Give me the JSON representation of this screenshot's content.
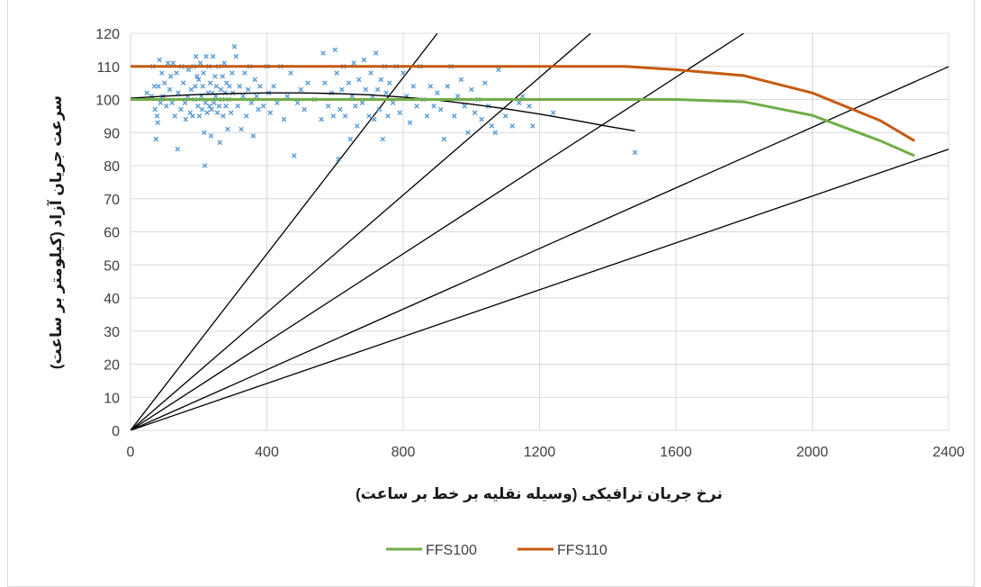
{
  "chart_data": {
    "type": "line",
    "xlabel": "نرخ جریان ترافیکی (وسیله نقلیه بر خط بر ساعت)",
    "ylabel": "سرعت جریان آزاد (کیلومتر بر ساعت)",
    "xlim": [
      0,
      2400
    ],
    "ylim": [
      0,
      120
    ],
    "x_ticks": [
      "0",
      "400",
      "800",
      "1200",
      "1600",
      "2000",
      "2400"
    ],
    "y_ticks": [
      "0",
      "10",
      "20",
      "30",
      "40",
      "50",
      "60",
      "70",
      "80",
      "90",
      "100",
      "110",
      "120"
    ],
    "grid": true,
    "legend_position": "bottom",
    "series": [
      {
        "name": "FFS100",
        "color": "#70ad47",
        "x": [
          0,
          1600,
          1800,
          2000,
          2200,
          2300
        ],
        "y": [
          100,
          100,
          99.3,
          95.2,
          87.5,
          83
        ]
      },
      {
        "name": "FFS110",
        "color": "#c55a11",
        "x": [
          0,
          1450,
          1600,
          1800,
          2000,
          2200,
          2300
        ],
        "y": [
          110,
          110,
          109,
          107.2,
          102,
          93.6,
          87.5
        ]
      }
    ],
    "density_lines": {
      "color": "#000000",
      "slopes": [
        0.1333,
        0.0889,
        0.0667,
        0.0458,
        0.0354
      ]
    },
    "trend_curve": {
      "color": "#000000",
      "x": [
        0,
        100,
        200,
        300,
        400,
        500,
        600,
        700,
        800,
        900,
        1000,
        1100,
        1200,
        1300,
        1400,
        1480
      ],
      "y": [
        100.4,
        101.0,
        101.5,
        101.8,
        102.0,
        102.0,
        101.8,
        101.4,
        100.7,
        99.8,
        98.6,
        97.2,
        95.6,
        93.8,
        91.9,
        90.5
      ]
    },
    "scatter": {
      "color": "#5b9bd5",
      "points": [
        [
          48,
          102
        ],
        [
          62,
          101
        ],
        [
          66,
          110
        ],
        [
          70,
          104
        ],
        [
          72,
          97
        ],
        [
          75,
          88
        ],
        [
          78,
          95
        ],
        [
          80,
          93
        ],
        [
          82,
          104
        ],
        [
          85,
          112
        ],
        [
          88,
          99
        ],
        [
          92,
          108
        ],
        [
          95,
          101
        ],
        [
          100,
          105
        ],
        [
          105,
          98
        ],
        [
          110,
          111
        ],
        [
          115,
          103
        ],
        [
          118,
          107
        ],
        [
          122,
          99
        ],
        [
          125,
          111
        ],
        [
          130,
          95
        ],
        [
          135,
          108
        ],
        [
          138,
          85
        ],
        [
          140,
          102
        ],
        [
          148,
          97
        ],
        [
          150,
          110
        ],
        [
          155,
          105
        ],
        [
          160,
          99
        ],
        [
          162,
          94
        ],
        [
          168,
          101
        ],
        [
          170,
          109
        ],
        [
          175,
          96
        ],
        [
          178,
          103
        ],
        [
          182,
          95
        ],
        [
          185,
          110
        ],
        [
          188,
          100
        ],
        [
          190,
          104
        ],
        [
          192,
          113
        ],
        [
          195,
          107
        ],
        [
          198,
          98
        ],
        [
          200,
          106
        ],
        [
          202,
          95
        ],
        [
          205,
          111
        ],
        [
          208,
          101
        ],
        [
          210,
          97
        ],
        [
          212,
          104
        ],
        [
          214,
          108
        ],
        [
          216,
          90
        ],
        [
          218,
          80
        ],
        [
          220,
          99
        ],
        [
          222,
          113
        ],
        [
          225,
          96
        ],
        [
          228,
          102
        ],
        [
          230,
          110
        ],
        [
          232,
          98
        ],
        [
          234,
          105
        ],
        [
          236,
          89
        ],
        [
          238,
          97
        ],
        [
          240,
          102
        ],
        [
          242,
          113
        ],
        [
          245,
          99
        ],
        [
          248,
          107
        ],
        [
          250,
          101
        ],
        [
          252,
          104
        ],
        [
          255,
          96
        ],
        [
          258,
          110
        ],
        [
          260,
          98
        ],
        [
          262,
          87
        ],
        [
          265,
          103
        ],
        [
          268,
          100
        ],
        [
          270,
          107
        ],
        [
          272,
          95
        ],
        [
          275,
          111
        ],
        [
          278,
          102
        ],
        [
          280,
          98
        ],
        [
          282,
          105
        ],
        [
          285,
          91
        ],
        [
          288,
          100
        ],
        [
          290,
          104
        ],
        [
          295,
          96
        ],
        [
          298,
          108
        ],
        [
          300,
          102
        ],
        [
          305,
          116
        ],
        [
          310,
          113
        ],
        [
          315,
          98
        ],
        [
          320,
          104
        ],
        [
          325,
          91
        ],
        [
          330,
          101
        ],
        [
          335,
          108
        ],
        [
          340,
          95
        ],
        [
          345,
          103
        ],
        [
          350,
          110
        ],
        [
          355,
          99
        ],
        [
          360,
          89
        ],
        [
          365,
          106
        ],
        [
          370,
          101
        ],
        [
          375,
          97
        ],
        [
          380,
          104
        ],
        [
          390,
          98
        ],
        [
          400,
          110
        ],
        [
          405,
          102
        ],
        [
          410,
          96
        ],
        [
          420,
          104
        ],
        [
          430,
          99
        ],
        [
          440,
          110
        ],
        [
          450,
          94
        ],
        [
          460,
          101
        ],
        [
          470,
          108
        ],
        [
          480,
          83
        ],
        [
          490,
          99
        ],
        [
          500,
          103
        ],
        [
          510,
          97
        ],
        [
          520,
          105
        ],
        [
          540,
          100
        ],
        [
          560,
          94
        ],
        [
          565,
          114
        ],
        [
          570,
          105
        ],
        [
          580,
          98
        ],
        [
          590,
          102
        ],
        [
          595,
          95
        ],
        [
          600,
          115
        ],
        [
          605,
          108
        ],
        [
          610,
          82
        ],
        [
          615,
          97
        ],
        [
          620,
          103
        ],
        [
          625,
          110
        ],
        [
          630,
          95
        ],
        [
          640,
          105
        ],
        [
          645,
          88
        ],
        [
          650,
          101
        ],
        [
          655,
          111
        ],
        [
          660,
          98
        ],
        [
          665,
          92
        ],
        [
          670,
          106
        ],
        [
          680,
          99
        ],
        [
          685,
          112
        ],
        [
          690,
          103
        ],
        [
          700,
          95
        ],
        [
          705,
          108
        ],
        [
          710,
          101
        ],
        [
          715,
          94
        ],
        [
          720,
          114
        ],
        [
          725,
          103
        ],
        [
          730,
          97
        ],
        [
          735,
          106
        ],
        [
          740,
          88
        ],
        [
          745,
          110
        ],
        [
          750,
          102
        ],
        [
          755,
          95
        ],
        [
          760,
          105
        ],
        [
          770,
          99
        ],
        [
          780,
          110
        ],
        [
          790,
          96
        ],
        [
          800,
          108
        ],
        [
          810,
          101
        ],
        [
          820,
          93
        ],
        [
          830,
          104
        ],
        [
          840,
          98
        ],
        [
          850,
          110
        ],
        [
          860,
          100
        ],
        [
          870,
          95
        ],
        [
          880,
          104
        ],
        [
          890,
          98
        ],
        [
          900,
          102
        ],
        [
          910,
          97
        ],
        [
          920,
          88
        ],
        [
          930,
          104
        ],
        [
          940,
          110
        ],
        [
          950,
          95
        ],
        [
          960,
          101
        ],
        [
          970,
          106
        ],
        [
          980,
          98
        ],
        [
          990,
          90
        ],
        [
          1000,
          103
        ],
        [
          1010,
          96
        ],
        [
          1020,
          100
        ],
        [
          1030,
          94
        ],
        [
          1040,
          105
        ],
        [
          1050,
          98
        ],
        [
          1060,
          92
        ],
        [
          1070,
          90
        ],
        [
          1080,
          109
        ],
        [
          1100,
          95
        ],
        [
          1120,
          92
        ],
        [
          1140,
          99
        ],
        [
          1150,
          101
        ],
        [
          1170,
          98
        ],
        [
          1180,
          92
        ],
        [
          1240,
          96
        ],
        [
          1480,
          84
        ]
      ]
    }
  },
  "legend": {
    "items": [
      {
        "label": "FFS100",
        "color": "#70ad47"
      },
      {
        "label": "FFS110",
        "color": "#c55a11"
      }
    ]
  }
}
